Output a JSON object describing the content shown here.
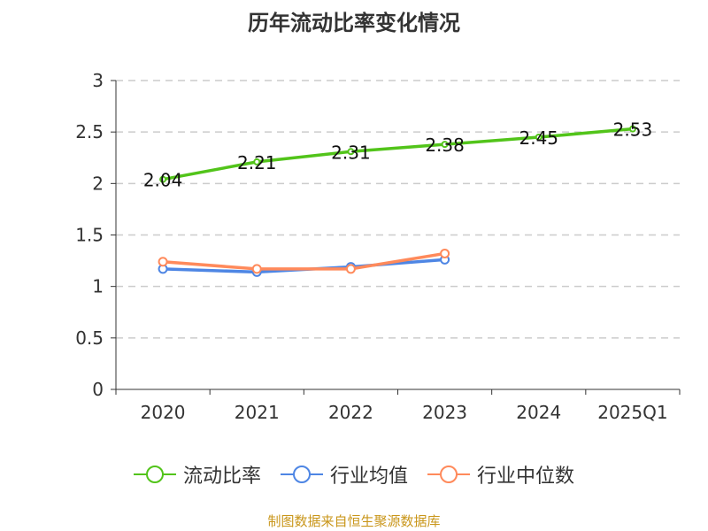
{
  "chart_data": {
    "type": "line",
    "title": "历年流动比率变化情况",
    "categories": [
      "2020",
      "2021",
      "2022",
      "2023",
      "2024",
      "2025Q1"
    ],
    "ylim": [
      0,
      3
    ],
    "yticks": [
      "0",
      "0.5",
      "1",
      "1.5",
      "2",
      "2.5",
      "3"
    ],
    "grid": true,
    "legend": "bottom",
    "series": [
      {
        "name": "流动比率",
        "color": "#52c41a",
        "values": [
          2.04,
          2.21,
          2.31,
          2.38,
          2.45,
          2.53
        ],
        "labels": [
          "2.04",
          "2.21",
          "2.31",
          "2.38",
          "2.45",
          "2.53"
        ]
      },
      {
        "name": "行业均值",
        "color": "#4e86e4",
        "values": [
          1.17,
          1.14,
          1.19,
          1.26,
          null,
          null
        ]
      },
      {
        "name": "行业中位数",
        "color": "#ff8a5b",
        "values": [
          1.24,
          1.17,
          1.17,
          1.32,
          null,
          null
        ]
      }
    ]
  },
  "source": "制图数据来自恒生聚源数据库"
}
